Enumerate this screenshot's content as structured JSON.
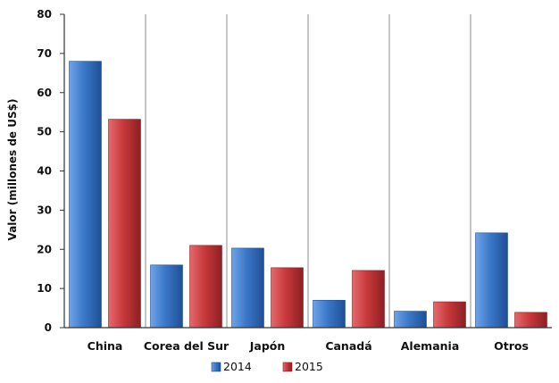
{
  "chart_data": {
    "type": "bar",
    "categories": [
      "China",
      "Corea del Sur",
      "Japón",
      "Canadá",
      "Alemania",
      "Otros"
    ],
    "series": [
      {
        "name": "2014",
        "values": [
          68,
          16,
          20.3,
          7,
          4.2,
          24.2
        ],
        "color": "#3b78c8"
      },
      {
        "name": "2015",
        "values": [
          53.2,
          21,
          15.3,
          14.6,
          6.6,
          3.9
        ],
        "color": "#c8393b"
      }
    ],
    "title": "",
    "xlabel": "",
    "ylabel": "Valor (millones de US$)",
    "ylim": [
      0,
      80
    ],
    "yticks": [
      0,
      10,
      20,
      30,
      40,
      50,
      60,
      70,
      80
    ],
    "grid": "vertical-separators",
    "legend_position": "bottom"
  }
}
